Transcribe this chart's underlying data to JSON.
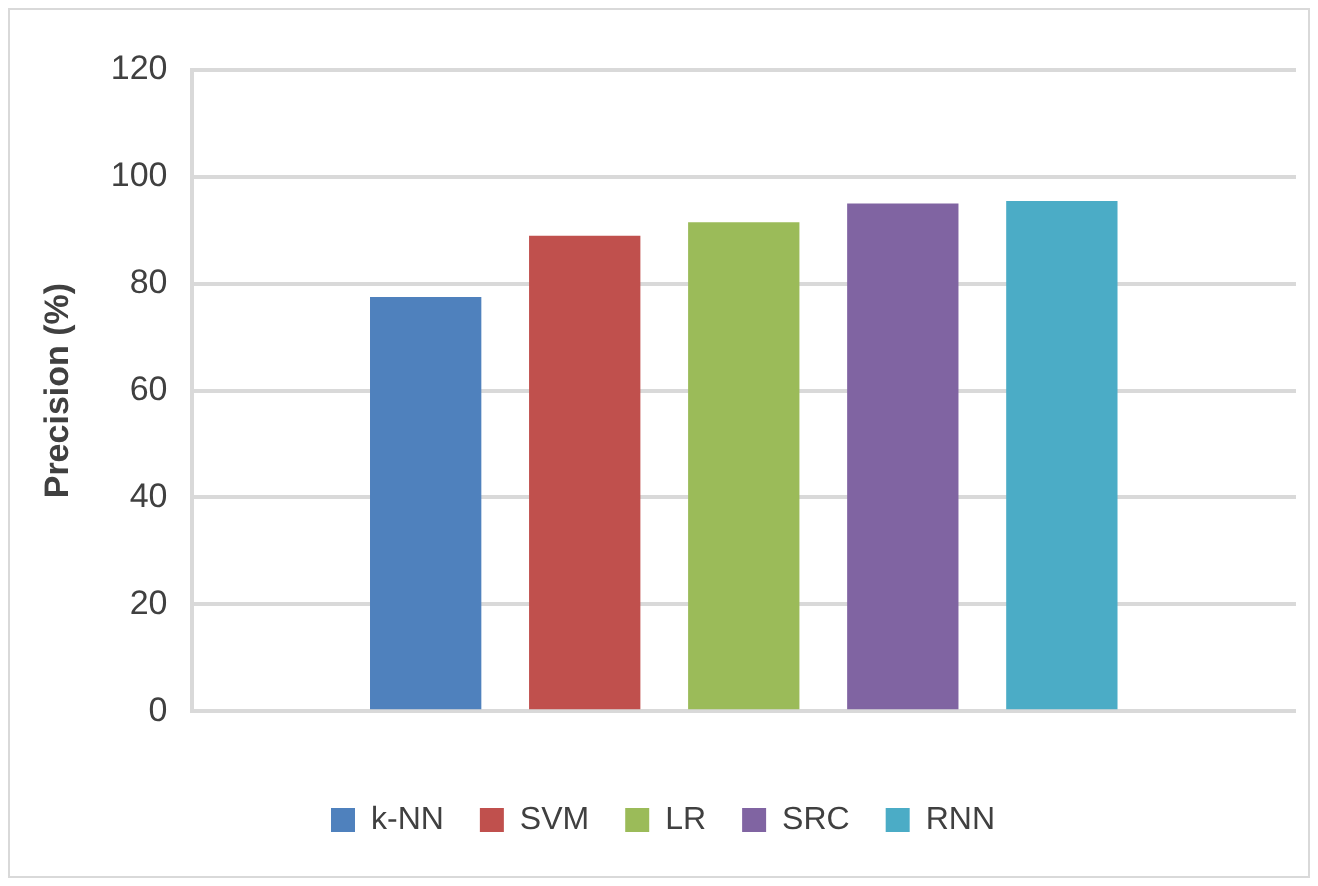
{
  "chart_data": {
    "type": "bar",
    "ylabel": "Precision (%)",
    "categories": [
      null
    ],
    "series": [
      {
        "name": "k-NN",
        "color": "#4f81bd",
        "values": [
          77.5
        ]
      },
      {
        "name": "SVM",
        "color": "#c0504d",
        "values": [
          89
        ]
      },
      {
        "name": "LR",
        "color": "#9bbb59",
        "values": [
          91.5
        ]
      },
      {
        "name": "SRC",
        "color": "#8064a2",
        "values": [
          95
        ]
      },
      {
        "name": "RNN",
        "color": "#4bacc6",
        "values": [
          95.5
        ]
      }
    ],
    "ylim": [
      0,
      120
    ],
    "yticks": [
      0,
      20,
      40,
      60,
      80,
      100,
      120
    ],
    "grid": "y",
    "legend": "bottom"
  }
}
